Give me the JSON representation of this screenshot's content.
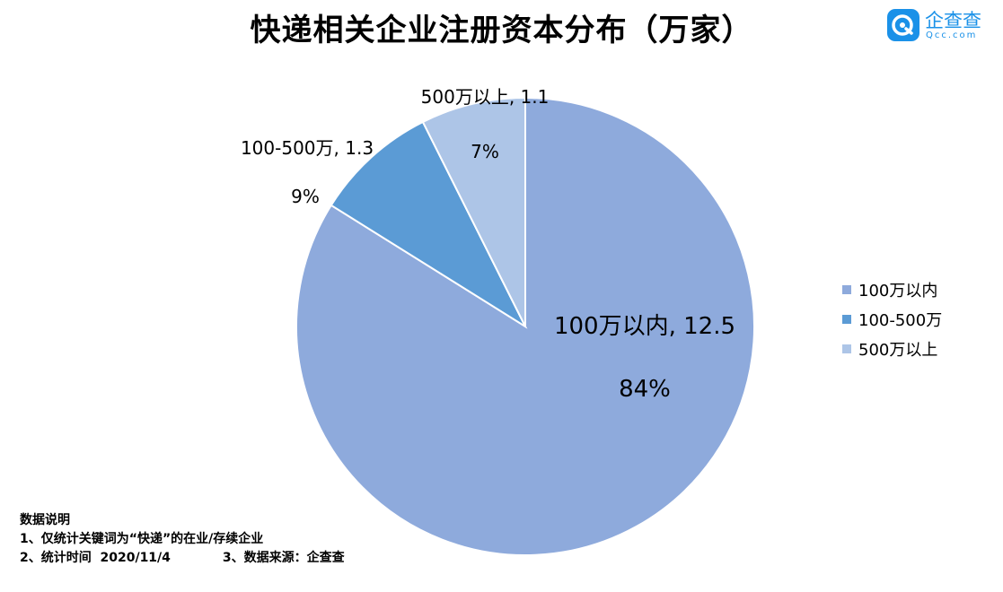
{
  "title": "快递相关企业注册资本分布（万家）",
  "brand": {
    "name": "企查查",
    "url": "Qcc.com",
    "color": "#1a91e8"
  },
  "chart_data": {
    "type": "pie",
    "title": "快递相关企业注册资本分布（万家）",
    "slices": [
      {
        "label": "100万以内",
        "value": 12.5,
        "percent": "84%",
        "color": "#8eaadc",
        "data_label": "100万以内, 12.5"
      },
      {
        "label": "100-500万",
        "value": 1.3,
        "percent": "9%",
        "color": "#5b9bd5",
        "data_label": "100-500万, 1.3"
      },
      {
        "label": "500万以上",
        "value": 1.1,
        "percent": "7%",
        "color": "#adc5e7",
        "data_label": "500万以上, 1.1"
      }
    ],
    "legend_position": "right",
    "start_angle": "top",
    "direction": "clockwise"
  },
  "notes": {
    "heading": "数据说明",
    "line1": "1、仅统计关键词为“快递”的在业/存续企业",
    "line2_left": "2、统计时间  2020/11/4",
    "line2_right": "3、数据来源：企查查"
  }
}
